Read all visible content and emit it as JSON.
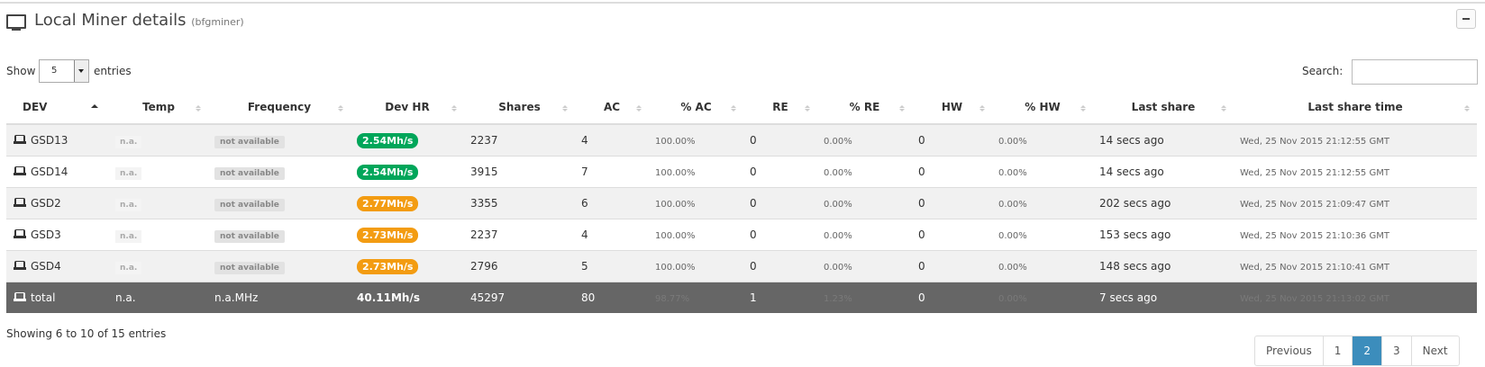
{
  "header": {
    "title": "Local Miner details",
    "subtitle": "(bfgminer)"
  },
  "controls": {
    "show": "Show",
    "page_size": "5",
    "entries": "entries",
    "search": "Search:"
  },
  "table": {
    "columns": [
      "DEV",
      "Temp",
      "Frequency",
      "Dev HR",
      "Shares",
      "AC",
      "% AC",
      "RE",
      "% RE",
      "HW",
      "% HW",
      "Last share",
      "Last share time"
    ],
    "rows": [
      [
        "GSD13",
        "n.a.",
        "not available",
        "2.54Mh/s",
        "2237",
        "4",
        "100.00%",
        "0",
        "0.00%",
        "0",
        "0.00%",
        "14 secs ago",
        "Wed, 25 Nov 2015 21:12:55 GMT"
      ],
      [
        "GSD14",
        "n.a.",
        "not available",
        "2.54Mh/s",
        "3915",
        "7",
        "100.00%",
        "0",
        "0.00%",
        "0",
        "0.00%",
        "14 secs ago",
        "Wed, 25 Nov 2015 21:12:55 GMT"
      ],
      [
        "GSD2",
        "n.a.",
        "not available",
        "2.77Mh/s",
        "3355",
        "6",
        "100.00%",
        "0",
        "0.00%",
        "0",
        "0.00%",
        "202 secs ago",
        "Wed, 25 Nov 2015 21:09:47 GMT"
      ],
      [
        "GSD3",
        "n.a.",
        "not available",
        "2.73Mh/s",
        "2237",
        "4",
        "100.00%",
        "0",
        "0.00%",
        "0",
        "0.00%",
        "153 secs ago",
        "Wed, 25 Nov 2015 21:10:36 GMT"
      ],
      [
        "GSD4",
        "n.a.",
        "not available",
        "2.73Mh/s",
        "2796",
        "5",
        "100.00%",
        "0",
        "0.00%",
        "0",
        "0.00%",
        "148 secs ago",
        "Wed, 25 Nov 2015 21:10:41 GMT"
      ]
    ],
    "hr_colors": [
      "#00a65a",
      "#00a65a",
      "#f39c12",
      "#f39c12",
      "#f39c12"
    ],
    "total": [
      "total",
      "n.a.",
      "n.a.MHz",
      "40.11Mh/s",
      "45297",
      "80",
      "98.77%",
      "1",
      "1.23%",
      "0",
      "0.00%",
      "7 secs ago",
      "Wed, 25 Nov 2015 21:13:02 GMT"
    ]
  },
  "footer": {
    "info": "Showing 6 to 10 of 15 entries",
    "pages": [
      "Previous",
      "1",
      "2",
      "3",
      "Next"
    ],
    "active_page": 2
  }
}
